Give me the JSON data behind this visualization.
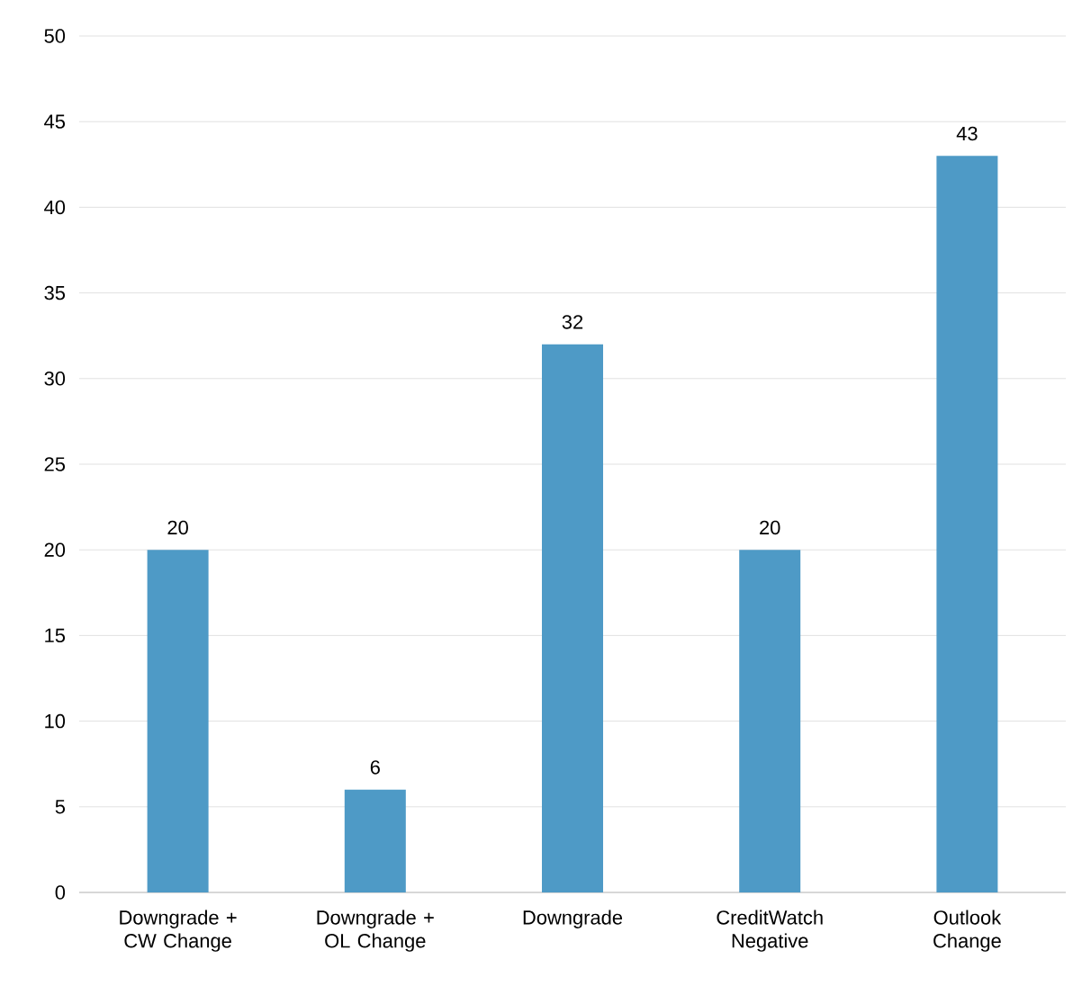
{
  "chart_data": {
    "type": "bar",
    "categories": [
      "Downgrade + CW Change",
      "Downgrade + OL Change",
      "Downgrade",
      "CreditWatch Negative",
      "Outlook Change"
    ],
    "values": [
      20,
      6,
      32,
      20,
      43
    ],
    "color": "#4e9ac6",
    "ylim": [
      0,
      50
    ],
    "yticks": [
      0,
      5,
      10,
      15,
      20,
      25,
      30,
      35,
      40,
      45,
      50
    ],
    "grid": "y",
    "data_labels": true
  }
}
